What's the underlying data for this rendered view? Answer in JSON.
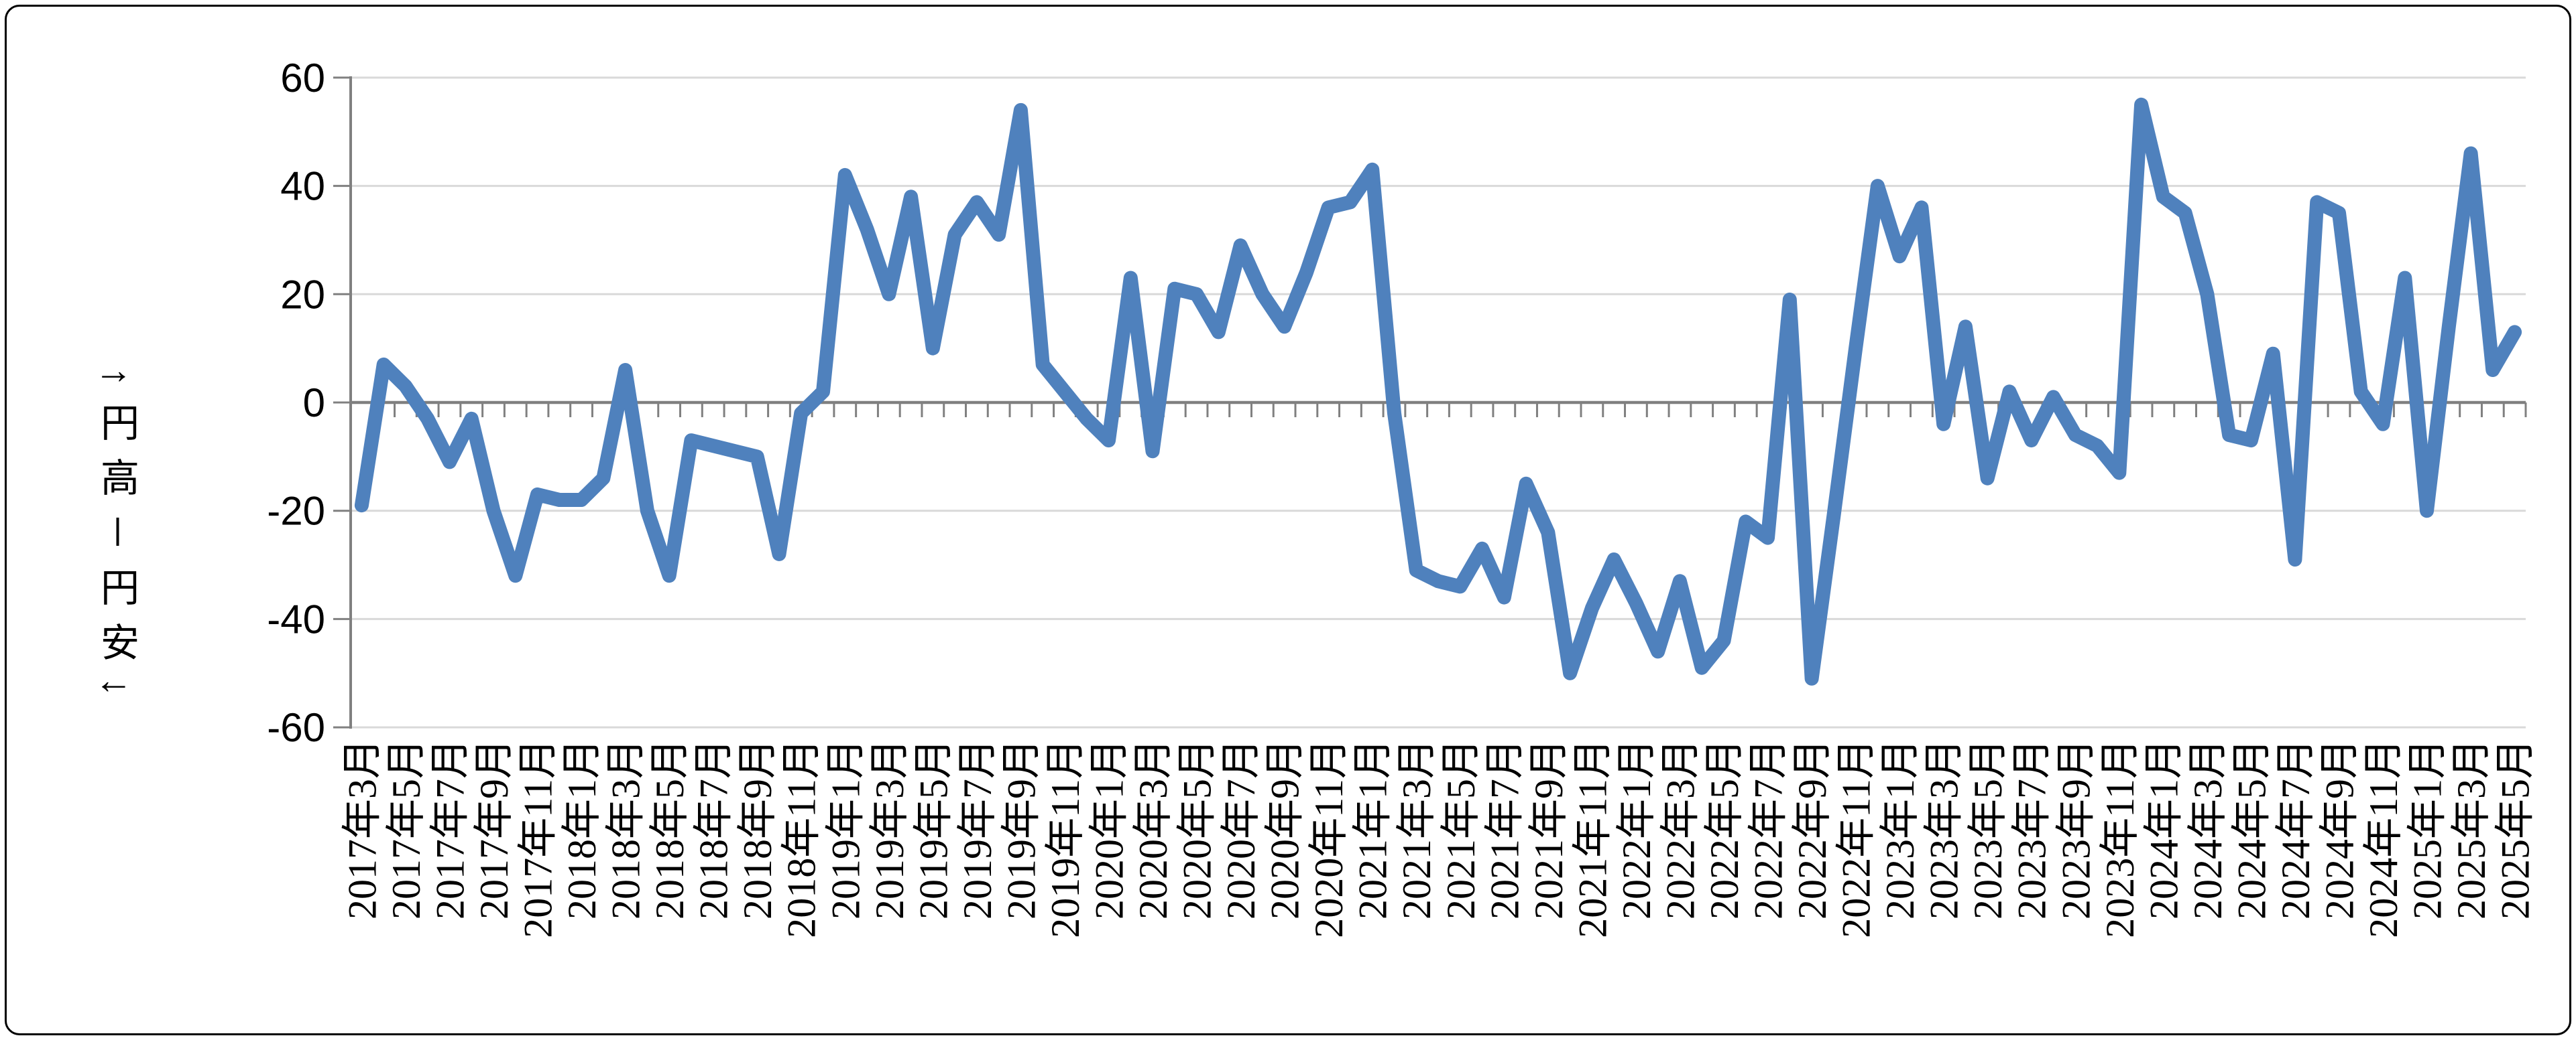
{
  "chart_data": {
    "type": "line",
    "title": "",
    "ylabel": "↑円高－円安↓",
    "xlabel": "",
    "ylim": [
      -60,
      60
    ],
    "ytick_step": 20,
    "y_tick_labels": [
      "60",
      "40",
      "20",
      "0",
      "-20",
      "-40",
      "-60"
    ],
    "x_label_interval": 2,
    "grid": true,
    "legend": false,
    "line_color": "#4F81BD",
    "grid_color": "#D9D9D9",
    "axis_color": "#808080",
    "text_color": "#000000",
    "x": [
      "2017年3月",
      "2017年4月",
      "2017年5月",
      "2017年6月",
      "2017年7月",
      "2017年8月",
      "2017年9月",
      "2017年10月",
      "2017年11月",
      "2017年12月",
      "2018年1月",
      "2018年2月",
      "2018年3月",
      "2018年4月",
      "2018年5月",
      "2018年6月",
      "2018年7月",
      "2018年8月",
      "2018年9月",
      "2018年10月",
      "2018年11月",
      "2018年12月",
      "2019年1月",
      "2019年2月",
      "2019年3月",
      "2019年4月",
      "2019年5月",
      "2019年6月",
      "2019年7月",
      "2019年8月",
      "2019年9月",
      "2019年10月",
      "2019年11月",
      "2019年12月",
      "2020年1月",
      "2020年2月",
      "2020年3月",
      "2020年4月",
      "2020年5月",
      "2020年6月",
      "2020年7月",
      "2020年8月",
      "2020年9月",
      "2020年10月",
      "2020年11月",
      "2020年12月",
      "2021年1月",
      "2021年2月",
      "2021年3月",
      "2021年4月",
      "2021年5月",
      "2021年6月",
      "2021年7月",
      "2021年8月",
      "2021年9月",
      "2021年10月",
      "2021年11月",
      "2021年12月",
      "2022年1月",
      "2022年2月",
      "2022年3月",
      "2022年4月",
      "2022年5月",
      "2022年6月",
      "2022年7月",
      "2022年8月",
      "2022年9月",
      "2022年10月",
      "2022年11月",
      "2022年12月",
      "2023年1月",
      "2023年2月",
      "2023年3月",
      "2023年4月",
      "2023年5月",
      "2023年6月",
      "2023年7月",
      "2023年8月",
      "2023年9月",
      "2023年10月",
      "2023年11月",
      "2023年12月",
      "2024年1月",
      "2024年2月",
      "2024年3月",
      "2024年4月",
      "2024年5月",
      "2024年6月",
      "2024年7月",
      "2024年8月",
      "2024年9月",
      "2024年10月",
      "2024年11月",
      "2024年12月",
      "2025年1月",
      "2025年2月",
      "2025年3月",
      "2025年4月",
      "2025年5月"
    ],
    "values": [
      -19,
      7,
      3,
      -3,
      -11,
      -3,
      -20,
      -32,
      -17,
      -18,
      -18,
      -14,
      6,
      -20,
      -32,
      -7,
      -8,
      -9,
      -10,
      -28,
      -2,
      2,
      42,
      32,
      20,
      38,
      10,
      31,
      37,
      31,
      54,
      7,
      2,
      -3,
      -7,
      23,
      -9,
      21,
      20,
      13,
      29,
      20,
      14,
      24,
      36,
      37,
      43,
      -2,
      -31,
      -33,
      -34,
      -27,
      -36,
      -15,
      -24,
      -50,
      -38,
      -29,
      -37,
      -46,
      -33,
      -49,
      -44,
      -22,
      -25,
      19,
      -51,
      -21,
      10,
      40,
      27,
      36,
      -4,
      14,
      -14,
      2,
      -7,
      1,
      -6,
      -8,
      -13,
      55,
      38,
      35,
      20,
      -6,
      -7,
      9,
      -29,
      37,
      35,
      2,
      -4,
      23,
      -20,
      14,
      46,
      6,
      13
    ]
  }
}
